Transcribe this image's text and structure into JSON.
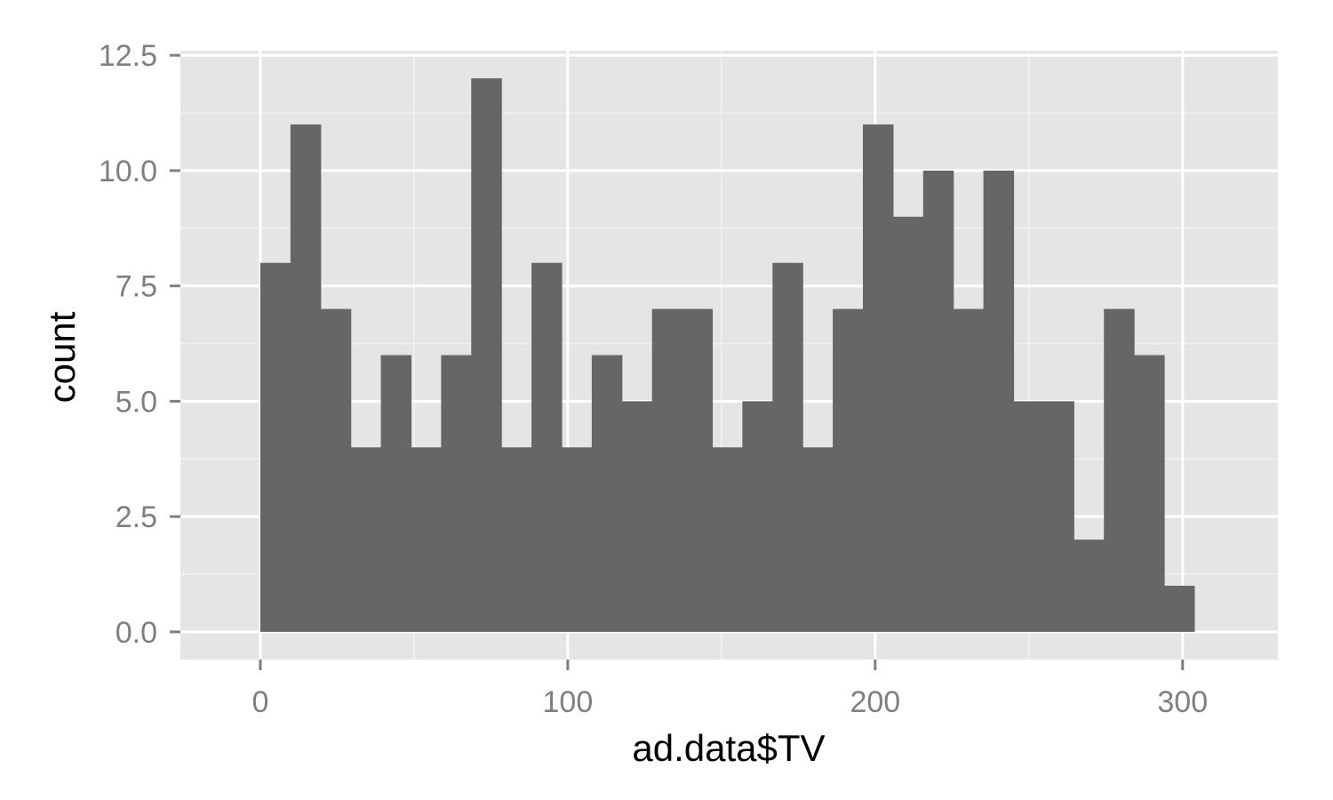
{
  "chart_data": {
    "type": "bar",
    "subtype": "histogram",
    "xlabel": "ad.data$TV",
    "ylabel": "count",
    "xlim": [
      -26,
      331
    ],
    "ylim": [
      -0.6,
      12.6
    ],
    "x_ticks": [
      0,
      100,
      200,
      300
    ],
    "x_tick_labels": [
      "0",
      "100",
      "200",
      "300"
    ],
    "y_ticks": [
      0,
      2.5,
      5,
      7.5,
      10,
      12.5
    ],
    "y_tick_labels": [
      "0.0",
      "2.5",
      "5.0",
      "7.5",
      "10.0",
      "12.5"
    ],
    "grid": true,
    "bins": {
      "start": 0,
      "width": 9.8,
      "counts": [
        8,
        11,
        7,
        4,
        6,
        4,
        6,
        12,
        4,
        8,
        4,
        6,
        5,
        7,
        7,
        4,
        5,
        8,
        4,
        7,
        11,
        9,
        10,
        7,
        10,
        5,
        5,
        2,
        7,
        6,
        1
      ]
    }
  },
  "colors": {
    "panel_background": "#e5e5e5",
    "grid_major": "#ffffff",
    "grid_minor": "#f2f2f2",
    "bar_fill": "#666666",
    "tick_mark": "#7f7f7f",
    "tick_label": "#7f7f7f",
    "axis_title": "#000000"
  }
}
